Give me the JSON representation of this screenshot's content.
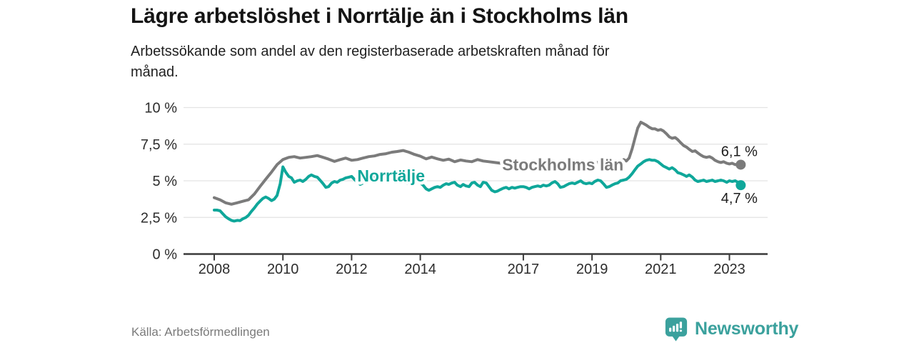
{
  "chart_data": {
    "type": "line",
    "title": "Lägre arbetslöshet i Norrtälje än i Stockholms län",
    "subtitle_lines": [
      "Arbetssökande som andel av den registerbaserade arbetskraften månad för",
      "månad."
    ],
    "grid": true,
    "legend_position": "inline-on-lines",
    "x_axis": {
      "range": [
        2007.1,
        2024.1
      ],
      "ticks": [
        2008,
        2010,
        2012,
        2014,
        2017,
        2019,
        2021,
        2023
      ]
    },
    "y_axis": {
      "range": [
        0,
        10
      ],
      "unit": "%",
      "ticks": [
        {
          "value": 0,
          "label": "0 %"
        },
        {
          "value": 2.5,
          "label": "2,5 %"
        },
        {
          "value": 5,
          "label": "5 %"
        },
        {
          "value": 7.5,
          "label": "7,5 %"
        },
        {
          "value": 10,
          "label": "10 %"
        }
      ]
    },
    "series": [
      {
        "name": "Stockholms län",
        "color": "#7b7b7b",
        "end_value_label": "6,1 %",
        "end_label_position": "above",
        "label_anchor": {
          "year": 2018.15,
          "value": 5.7
        },
        "points": [
          [
            2008.0,
            3.85
          ],
          [
            2008.17,
            3.7
          ],
          [
            2008.33,
            3.5
          ],
          [
            2008.5,
            3.4
          ],
          [
            2008.67,
            3.5
          ],
          [
            2008.83,
            3.6
          ],
          [
            2009.0,
            3.7
          ],
          [
            2009.17,
            4.1
          ],
          [
            2009.33,
            4.6
          ],
          [
            2009.5,
            5.1
          ],
          [
            2009.67,
            5.6
          ],
          [
            2009.83,
            6.1
          ],
          [
            2010.0,
            6.45
          ],
          [
            2010.17,
            6.6
          ],
          [
            2010.33,
            6.65
          ],
          [
            2010.5,
            6.55
          ],
          [
            2010.67,
            6.6
          ],
          [
            2010.83,
            6.65
          ],
          [
            2011.0,
            6.72
          ],
          [
            2011.17,
            6.6
          ],
          [
            2011.33,
            6.48
          ],
          [
            2011.5,
            6.32
          ],
          [
            2011.67,
            6.45
          ],
          [
            2011.83,
            6.55
          ],
          [
            2012.0,
            6.4
          ],
          [
            2012.17,
            6.45
          ],
          [
            2012.33,
            6.55
          ],
          [
            2012.5,
            6.65
          ],
          [
            2012.67,
            6.7
          ],
          [
            2012.83,
            6.8
          ],
          [
            2013.0,
            6.85
          ],
          [
            2013.17,
            6.95
          ],
          [
            2013.33,
            7.0
          ],
          [
            2013.5,
            7.07
          ],
          [
            2013.67,
            6.95
          ],
          [
            2013.83,
            6.8
          ],
          [
            2014.0,
            6.68
          ],
          [
            2014.17,
            6.5
          ],
          [
            2014.33,
            6.62
          ],
          [
            2014.5,
            6.5
          ],
          [
            2014.67,
            6.4
          ],
          [
            2014.83,
            6.48
          ],
          [
            2015.0,
            6.3
          ],
          [
            2015.17,
            6.42
          ],
          [
            2015.33,
            6.35
          ],
          [
            2015.5,
            6.3
          ],
          [
            2015.67,
            6.45
          ],
          [
            2015.83,
            6.35
          ],
          [
            2016.0,
            6.3
          ],
          [
            2016.17,
            6.25
          ],
          [
            2016.33,
            6.2
          ],
          [
            2016.5,
            6.15
          ],
          [
            2016.67,
            6.2
          ],
          [
            2016.83,
            6.25
          ],
          [
            2017.0,
            6.3
          ],
          [
            2017.17,
            6.25
          ],
          [
            2017.33,
            6.2
          ],
          [
            2017.5,
            6.25
          ],
          [
            2017.67,
            6.2
          ],
          [
            2017.83,
            6.25
          ],
          [
            2018.0,
            6.2
          ],
          [
            2018.17,
            6.25
          ],
          [
            2018.33,
            6.2
          ],
          [
            2018.5,
            6.25
          ],
          [
            2018.67,
            6.2
          ],
          [
            2018.83,
            6.25
          ],
          [
            2019.0,
            6.2
          ],
          [
            2019.17,
            6.25
          ],
          [
            2019.33,
            6.2
          ],
          [
            2019.5,
            6.25
          ],
          [
            2019.67,
            6.2
          ],
          [
            2019.83,
            6.25
          ],
          [
            2019.92,
            6.45
          ],
          [
            2020.0,
            6.35
          ],
          [
            2020.08,
            6.55
          ],
          [
            2020.17,
            7.2
          ],
          [
            2020.25,
            7.9
          ],
          [
            2020.33,
            8.6
          ],
          [
            2020.42,
            9.0
          ],
          [
            2020.5,
            8.9
          ],
          [
            2020.58,
            8.8
          ],
          [
            2020.67,
            8.65
          ],
          [
            2020.75,
            8.55
          ],
          [
            2020.83,
            8.55
          ],
          [
            2020.92,
            8.45
          ],
          [
            2021.0,
            8.5
          ],
          [
            2021.08,
            8.4
          ],
          [
            2021.17,
            8.2
          ],
          [
            2021.25,
            8.0
          ],
          [
            2021.33,
            7.9
          ],
          [
            2021.42,
            7.95
          ],
          [
            2021.5,
            7.8
          ],
          [
            2021.58,
            7.6
          ],
          [
            2021.67,
            7.4
          ],
          [
            2021.75,
            7.3
          ],
          [
            2021.83,
            7.15
          ],
          [
            2021.92,
            7.0
          ],
          [
            2022.0,
            7.05
          ],
          [
            2022.08,
            6.9
          ],
          [
            2022.17,
            6.75
          ],
          [
            2022.25,
            6.65
          ],
          [
            2022.33,
            6.6
          ],
          [
            2022.42,
            6.65
          ],
          [
            2022.5,
            6.55
          ],
          [
            2022.58,
            6.4
          ],
          [
            2022.67,
            6.3
          ],
          [
            2022.75,
            6.25
          ],
          [
            2022.83,
            6.3
          ],
          [
            2022.92,
            6.2
          ],
          [
            2023.0,
            6.15
          ],
          [
            2023.08,
            6.2
          ],
          [
            2023.17,
            6.1
          ],
          [
            2023.25,
            6.15
          ],
          [
            2023.33,
            6.1
          ]
        ]
      },
      {
        "name": "Norrtälje",
        "color": "#0fa79a",
        "end_value_label": "4,7 %",
        "end_label_position": "below",
        "label_anchor": {
          "year": 2013.15,
          "value": 4.95
        },
        "points": [
          [
            2008.0,
            3.0
          ],
          [
            2008.08,
            3.0
          ],
          [
            2008.17,
            2.95
          ],
          [
            2008.25,
            2.75
          ],
          [
            2008.33,
            2.55
          ],
          [
            2008.42,
            2.4
          ],
          [
            2008.5,
            2.3
          ],
          [
            2008.58,
            2.25
          ],
          [
            2008.67,
            2.3
          ],
          [
            2008.75,
            2.28
          ],
          [
            2008.83,
            2.4
          ],
          [
            2008.92,
            2.5
          ],
          [
            2009.0,
            2.65
          ],
          [
            2009.08,
            2.9
          ],
          [
            2009.17,
            3.15
          ],
          [
            2009.25,
            3.4
          ],
          [
            2009.33,
            3.6
          ],
          [
            2009.42,
            3.8
          ],
          [
            2009.5,
            3.9
          ],
          [
            2009.58,
            3.8
          ],
          [
            2009.67,
            3.65
          ],
          [
            2009.75,
            3.75
          ],
          [
            2009.83,
            4.0
          ],
          [
            2009.92,
            4.8
          ],
          [
            2010.0,
            5.95
          ],
          [
            2010.08,
            5.6
          ],
          [
            2010.17,
            5.3
          ],
          [
            2010.25,
            5.2
          ],
          [
            2010.33,
            4.9
          ],
          [
            2010.42,
            5.0
          ],
          [
            2010.5,
            5.05
          ],
          [
            2010.58,
            4.95
          ],
          [
            2010.67,
            5.1
          ],
          [
            2010.75,
            5.3
          ],
          [
            2010.83,
            5.4
          ],
          [
            2010.92,
            5.3
          ],
          [
            2011.0,
            5.25
          ],
          [
            2011.08,
            5.05
          ],
          [
            2011.17,
            4.8
          ],
          [
            2011.25,
            4.55
          ],
          [
            2011.33,
            4.6
          ],
          [
            2011.42,
            4.85
          ],
          [
            2011.5,
            4.95
          ],
          [
            2011.58,
            4.9
          ],
          [
            2011.67,
            5.05
          ],
          [
            2011.75,
            5.1
          ],
          [
            2011.83,
            5.2
          ],
          [
            2011.92,
            5.25
          ],
          [
            2012.0,
            5.3
          ],
          [
            2012.08,
            5.1
          ],
          [
            2012.17,
            4.9
          ],
          [
            2012.25,
            4.75
          ],
          [
            2012.33,
            4.85
          ],
          [
            2012.42,
            5.0
          ],
          [
            2012.5,
            5.1
          ],
          [
            2012.58,
            5.2
          ],
          [
            2012.67,
            5.3
          ],
          [
            2012.75,
            5.4
          ],
          [
            2012.83,
            5.35
          ],
          [
            2012.92,
            5.45
          ],
          [
            2013.0,
            5.5
          ],
          [
            2013.17,
            5.35
          ],
          [
            2013.33,
            5.1
          ],
          [
            2013.5,
            4.9
          ],
          [
            2013.67,
            4.8
          ],
          [
            2013.83,
            4.9
          ],
          [
            2014.0,
            4.85
          ],
          [
            2014.08,
            4.7
          ],
          [
            2014.17,
            4.45
          ],
          [
            2014.25,
            4.35
          ],
          [
            2014.33,
            4.45
          ],
          [
            2014.42,
            4.55
          ],
          [
            2014.5,
            4.6
          ],
          [
            2014.58,
            4.55
          ],
          [
            2014.67,
            4.7
          ],
          [
            2014.75,
            4.8
          ],
          [
            2014.83,
            4.75
          ],
          [
            2014.92,
            4.85
          ],
          [
            2015.0,
            4.9
          ],
          [
            2015.08,
            4.7
          ],
          [
            2015.17,
            4.6
          ],
          [
            2015.25,
            4.75
          ],
          [
            2015.33,
            4.65
          ],
          [
            2015.42,
            4.6
          ],
          [
            2015.5,
            4.85
          ],
          [
            2015.58,
            4.9
          ],
          [
            2015.67,
            4.7
          ],
          [
            2015.75,
            4.6
          ],
          [
            2015.83,
            4.9
          ],
          [
            2015.92,
            4.85
          ],
          [
            2016.0,
            4.6
          ],
          [
            2016.08,
            4.35
          ],
          [
            2016.17,
            4.25
          ],
          [
            2016.25,
            4.3
          ],
          [
            2016.33,
            4.4
          ],
          [
            2016.42,
            4.5
          ],
          [
            2016.5,
            4.55
          ],
          [
            2016.58,
            4.45
          ],
          [
            2016.67,
            4.55
          ],
          [
            2016.75,
            4.5
          ],
          [
            2016.83,
            4.55
          ],
          [
            2016.92,
            4.6
          ],
          [
            2017.0,
            4.6
          ],
          [
            2017.08,
            4.55
          ],
          [
            2017.17,
            4.45
          ],
          [
            2017.25,
            4.55
          ],
          [
            2017.33,
            4.6
          ],
          [
            2017.42,
            4.65
          ],
          [
            2017.5,
            4.6
          ],
          [
            2017.58,
            4.7
          ],
          [
            2017.67,
            4.65
          ],
          [
            2017.75,
            4.7
          ],
          [
            2017.83,
            4.85
          ],
          [
            2017.92,
            4.95
          ],
          [
            2018.0,
            4.8
          ],
          [
            2018.08,
            4.55
          ],
          [
            2018.17,
            4.6
          ],
          [
            2018.25,
            4.7
          ],
          [
            2018.33,
            4.8
          ],
          [
            2018.42,
            4.85
          ],
          [
            2018.5,
            4.8
          ],
          [
            2018.58,
            4.9
          ],
          [
            2018.67,
            5.0
          ],
          [
            2018.75,
            4.85
          ],
          [
            2018.83,
            4.8
          ],
          [
            2018.92,
            4.85
          ],
          [
            2019.0,
            4.8
          ],
          [
            2019.08,
            4.95
          ],
          [
            2019.17,
            5.05
          ],
          [
            2019.25,
            5.0
          ],
          [
            2019.33,
            4.8
          ],
          [
            2019.42,
            4.55
          ],
          [
            2019.5,
            4.6
          ],
          [
            2019.58,
            4.7
          ],
          [
            2019.67,
            4.8
          ],
          [
            2019.75,
            4.85
          ],
          [
            2019.83,
            5.0
          ],
          [
            2019.92,
            5.05
          ],
          [
            2020.0,
            5.1
          ],
          [
            2020.08,
            5.25
          ],
          [
            2020.17,
            5.5
          ],
          [
            2020.25,
            5.75
          ],
          [
            2020.33,
            6.0
          ],
          [
            2020.42,
            6.15
          ],
          [
            2020.5,
            6.3
          ],
          [
            2020.58,
            6.4
          ],
          [
            2020.67,
            6.45
          ],
          [
            2020.75,
            6.4
          ],
          [
            2020.83,
            6.4
          ],
          [
            2020.92,
            6.3
          ],
          [
            2021.0,
            6.15
          ],
          [
            2021.08,
            6.0
          ],
          [
            2021.17,
            5.9
          ],
          [
            2021.25,
            5.8
          ],
          [
            2021.33,
            5.9
          ],
          [
            2021.42,
            5.75
          ],
          [
            2021.5,
            5.55
          ],
          [
            2021.58,
            5.5
          ],
          [
            2021.67,
            5.4
          ],
          [
            2021.75,
            5.3
          ],
          [
            2021.83,
            5.4
          ],
          [
            2021.92,
            5.25
          ],
          [
            2022.0,
            5.05
          ],
          [
            2022.08,
            4.95
          ],
          [
            2022.17,
            5.0
          ],
          [
            2022.25,
            5.05
          ],
          [
            2022.33,
            4.95
          ],
          [
            2022.42,
            5.0
          ],
          [
            2022.5,
            5.05
          ],
          [
            2022.58,
            4.95
          ],
          [
            2022.67,
            5.0
          ],
          [
            2022.75,
            5.05
          ],
          [
            2022.83,
            5.0
          ],
          [
            2022.92,
            4.9
          ],
          [
            2023.0,
            5.0
          ],
          [
            2023.08,
            4.95
          ],
          [
            2023.17,
            5.0
          ],
          [
            2023.25,
            4.9
          ],
          [
            2023.33,
            4.7
          ]
        ]
      }
    ]
  },
  "footer": {
    "source_label": "Källa: Arbetsförmedlingen",
    "brand": {
      "name": "Newsworthy",
      "color": "#3ba19d"
    }
  }
}
